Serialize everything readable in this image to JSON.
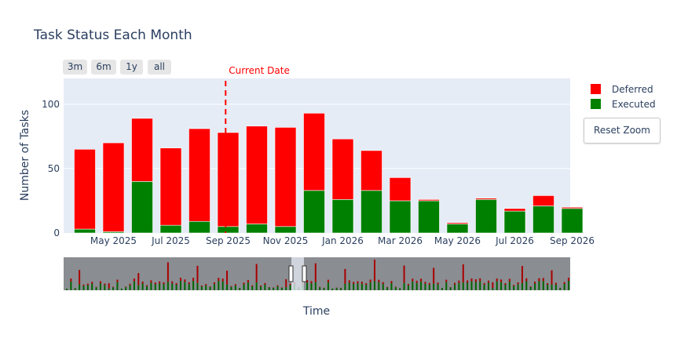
{
  "colors": {
    "deferred": "#ff0000",
    "executed": "#008000",
    "current_date": "#ff0000",
    "plot_bg": "#e5ecf6",
    "rangeslider_bg": "#8a8d92"
  },
  "range_buttons": [
    "3m",
    "6m",
    "1y",
    "all"
  ],
  "reset_zoom_label": "Reset Zoom",
  "chart_data": {
    "type": "bar",
    "title": "Task Status Each Month",
    "xlabel": "Time",
    "ylabel": "Number of Tasks",
    "barmode": "stack",
    "ylim": [
      0,
      120
    ],
    "yticks": [
      0,
      50,
      100
    ],
    "x": [
      "2025-04",
      "2025-05",
      "2025-06",
      "2025-07",
      "2025-08",
      "2025-09",
      "2025-10",
      "2025-11",
      "2025-12",
      "2026-01",
      "2026-02",
      "2026-03",
      "2026-04",
      "2026-05",
      "2026-06",
      "2026-07",
      "2026-08",
      "2026-09"
    ],
    "xticks": [
      {
        "at": "2025-05",
        "label": "May 2025"
      },
      {
        "at": "2025-07",
        "label": "Jul 2025"
      },
      {
        "at": "2025-09",
        "label": "Sep 2025"
      },
      {
        "at": "2025-11",
        "label": "Nov 2025"
      },
      {
        "at": "2026-01",
        "label": "Jan 2026"
      },
      {
        "at": "2026-03",
        "label": "Mar 2026"
      },
      {
        "at": "2026-05",
        "label": "May 2026"
      },
      {
        "at": "2026-07",
        "label": "Jul 2026"
      },
      {
        "at": "2026-09",
        "label": "Sep 2026"
      }
    ],
    "series": [
      {
        "name": "Executed",
        "values": [
          3,
          1,
          40,
          6,
          9,
          5,
          7,
          5,
          33,
          26,
          33,
          25,
          25,
          7,
          26,
          17,
          21,
          19
        ]
      },
      {
        "name": "Deferred",
        "values": [
          62,
          69,
          49,
          60,
          72,
          73,
          76,
          77,
          60,
          47,
          31,
          18,
          1,
          1,
          1,
          2,
          8,
          1
        ]
      }
    ],
    "annotation": {
      "label": "Current Date",
      "x": "2025-09-15"
    },
    "legend_position": "top-right",
    "rangeslider": true
  }
}
